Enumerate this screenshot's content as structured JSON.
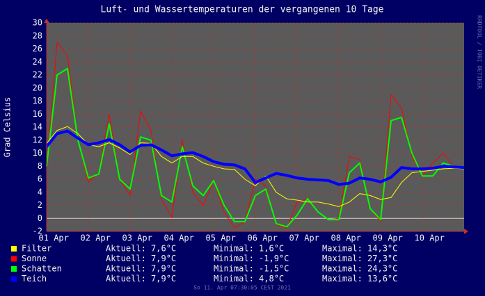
{
  "chart_data": {
    "type": "line",
    "title": "Luft- und Wassertemperaturen der vergangenen 10 Tage",
    "y_label": "Grad Celsius",
    "watermark": "RRDTOOL / TOBI OETIKER",
    "footer": "So 11. Apr 07:30:05 CEST 2021",
    "x": [
      0,
      0.25,
      0.5,
      0.75,
      1,
      1.25,
      1.5,
      1.75,
      2,
      2.25,
      2.5,
      2.75,
      3,
      3.25,
      3.5,
      3.75,
      4,
      4.25,
      4.5,
      4.75,
      5,
      5.25,
      5.5,
      5.75,
      6,
      6.25,
      6.5,
      6.75,
      7,
      7.25,
      7.5,
      7.75,
      8,
      8.25,
      8.5,
      8.75,
      9,
      9.25,
      9.5,
      9.75,
      10
    ],
    "xlim": [
      0,
      10
    ],
    "xticks": [
      {
        "value": 0.17,
        "label": "01 Apr"
      },
      {
        "value": 1.17,
        "label": "02 Apr"
      },
      {
        "value": 2.17,
        "label": "03 Apr"
      },
      {
        "value": 3.17,
        "label": "04 Apr"
      },
      {
        "value": 4.17,
        "label": "05 Apr"
      },
      {
        "value": 5.17,
        "label": "06 Apr"
      },
      {
        "value": 6.17,
        "label": "07 Apr"
      },
      {
        "value": 7.17,
        "label": "08 Apr"
      },
      {
        "value": 8.17,
        "label": "09 Apr"
      },
      {
        "value": 9.17,
        "label": "10 Apr"
      }
    ],
    "ylim": [
      -2,
      30
    ],
    "yticks": [
      -2,
      0,
      2,
      4,
      6,
      8,
      10,
      12,
      14,
      16,
      18,
      20,
      22,
      24,
      26,
      28,
      30
    ],
    "grid": true,
    "series": [
      {
        "name": "Filter",
        "color": "#ffff00",
        "width": 1,
        "stats": [
          "Aktuell: 7,6°C",
          "Minimal: 1,6°C",
          "Maximal: 14,3°C"
        ],
        "values": [
          11.5,
          13.5,
          14.1,
          13.0,
          11.3,
          11.0,
          11.6,
          10.8,
          9.8,
          11.6,
          11.5,
          9.5,
          8.5,
          9.5,
          9.5,
          8.5,
          8.0,
          7.6,
          7.5,
          6.0,
          5.0,
          6.5,
          4.0,
          3.0,
          2.8,
          2.5,
          2.5,
          2.2,
          1.8,
          2.5,
          3.8,
          3.5,
          2.9,
          3.2,
          5.5,
          7.0,
          7.2,
          7.4,
          7.6,
          7.7,
          7.6
        ]
      },
      {
        "name": "Sonne",
        "color": "#ff0000",
        "width": 1,
        "stats": [
          "Aktuell: 7,9°C",
          "Minimal: -1,9°C",
          "Maximal: 27,3°C"
        ],
        "values": [
          8,
          27,
          25,
          12,
          5.5,
          7,
          16,
          6,
          3.5,
          16.5,
          13.5,
          3,
          0.2,
          12,
          4,
          2,
          5.8,
          1,
          -1.5,
          -0.5,
          6,
          5,
          -1,
          -1.5,
          2.5,
          3,
          1,
          -0.2,
          0,
          9.5,
          9,
          1.5,
          -0.5,
          19,
          17,
          9.5,
          6.5,
          8.5,
          10,
          8.0,
          null
        ]
      },
      {
        "name": "Schatten",
        "color": "#00ff00",
        "width": 2,
        "stats": [
          "Aktuell: 7,9°C",
          "Minimal: -1,5°C",
          "Maximal: 24,3°C"
        ],
        "values": [
          8,
          22,
          23,
          12,
          6.2,
          6.8,
          14.5,
          6.0,
          4.5,
          12.5,
          12.0,
          3.5,
          2.5,
          11,
          5,
          3.5,
          5.8,
          2,
          -0.5,
          -0.5,
          3.5,
          4.5,
          -0.8,
          -1.3,
          0.5,
          3,
          1,
          -0.2,
          -0.2,
          7,
          8.5,
          1.5,
          -0.2,
          15,
          15.5,
          10,
          6.5,
          6.5,
          8.5,
          8.0,
          null
        ]
      },
      {
        "name": "Teich",
        "color": "#0000ff",
        "width": 4,
        "stats": [
          "Aktuell: 7,9°C",
          "Minimal: 4,8°C",
          "Maximal: 13,6°C"
        ],
        "values": [
          11,
          13,
          13.4,
          12.3,
          11.3,
          11.6,
          12.1,
          11.3,
          10.2,
          11.2,
          11.3,
          10.5,
          9.6,
          9.9,
          10.1,
          9.5,
          8.7,
          8.3,
          8.2,
          7.6,
          5.5,
          6.2,
          6.9,
          6.6,
          6.2,
          6.0,
          5.9,
          5.8,
          5.2,
          5.4,
          6.2,
          6.0,
          5.6,
          6.3,
          7.8,
          7.6,
          7.6,
          7.7,
          8.0,
          7.9,
          7.8
        ]
      }
    ]
  }
}
